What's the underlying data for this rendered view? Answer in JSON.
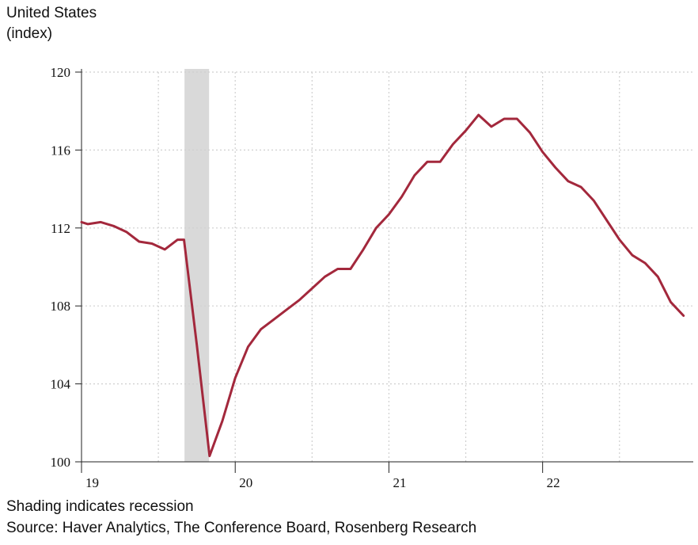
{
  "header": {
    "title": "United States",
    "subtitle": "(index)"
  },
  "footer": {
    "note": "Shading indicates recession",
    "source": "Source: Haver Analytics, The Conference Board, Rosenberg Research"
  },
  "colors": {
    "line": "#a3283c",
    "recession": "#d9d9d9",
    "grid": "#cfcfcf",
    "axis": "#222222"
  },
  "chart_data": {
    "type": "line",
    "title": "United States",
    "ylabel": "(index)",
    "xlabel": "",
    "ylim": [
      100,
      120
    ],
    "xlim": [
      2019.0,
      2022.98
    ],
    "y_ticks": [
      100,
      104,
      108,
      112,
      116,
      120
    ],
    "y_tick_labels": [
      "100",
      "104",
      "108",
      "112",
      "116",
      "120"
    ],
    "x_ticks": [
      2019,
      2020,
      2021,
      2022
    ],
    "x_tick_labels": [
      "19",
      "20",
      "21",
      "22"
    ],
    "x_gridlines": [
      2019.5,
      2020.0,
      2020.5,
      2021.0,
      2021.5,
      2022.0,
      2022.5
    ],
    "grid": true,
    "recession_shading": [
      2019.67,
      2019.83
    ],
    "series": [
      {
        "x": [
          2019.0,
          2019.0417,
          2019.125,
          2019.2083,
          2019.2917,
          2019.375,
          2019.4583,
          2019.5417,
          2019.625,
          2019.6667,
          2019.75,
          2019.8333,
          2019.9167,
          2020.0,
          2020.0833,
          2020.1667,
          2020.25,
          2020.3333,
          2020.4167,
          2020.5,
          2020.5833,
          2020.6667,
          2020.75,
          2020.8333,
          2020.9167,
          2021.0,
          2021.0833,
          2021.1667,
          2021.25,
          2021.3333,
          2021.4167,
          2021.5,
          2021.5833,
          2021.6667,
          2021.75,
          2021.8333,
          2021.9167,
          2022.0,
          2022.0833,
          2022.1667,
          2022.25,
          2022.3333,
          2022.4167,
          2022.5,
          2022.5833,
          2022.6667,
          2022.75,
          2022.8333,
          2022.9167
        ],
        "values": [
          112.3,
          112.2,
          112.3,
          112.1,
          111.8,
          111.3,
          111.2,
          110.9,
          111.4,
          111.4,
          106.0,
          100.3,
          102.1,
          104.3,
          105.9,
          106.8,
          107.3,
          107.8,
          108.3,
          108.9,
          109.5,
          109.9,
          109.9,
          110.9,
          112.0,
          112.7,
          113.6,
          114.7,
          115.4,
          115.4,
          116.3,
          117.0,
          117.8,
          117.2,
          117.6,
          117.6,
          116.9,
          115.9,
          115.1,
          114.4,
          114.1,
          113.4,
          112.4,
          111.4,
          110.6,
          110.2,
          109.5,
          108.2,
          107.5
        ]
      }
    ]
  }
}
